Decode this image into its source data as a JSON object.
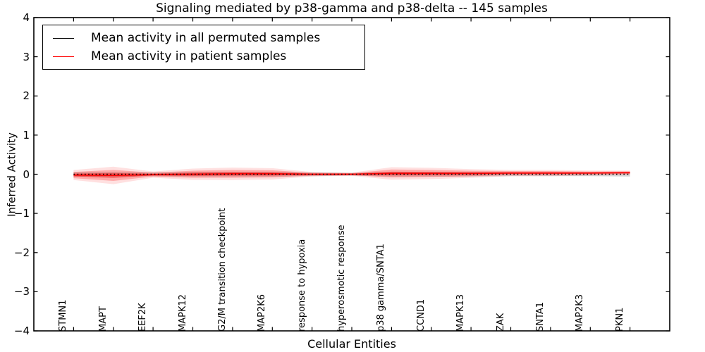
{
  "title": "Signaling mediated by p38-gamma and p38-delta -- 145 samples",
  "axes": {
    "ylabel": "Inferred Activity",
    "xlabel": "Cellular Entities"
  },
  "legend": {
    "items": [
      {
        "label": "Mean activity in all permuted samples",
        "color": "#000000"
      },
      {
        "label": "Mean activity in patient samples",
        "color": "#ff0000"
      }
    ]
  },
  "chart_data": {
    "type": "area",
    "title": "Signaling mediated by p38-gamma and p38-delta -- 145 samples",
    "xlabel": "Cellular Entities",
    "ylabel": "Inferred Activity",
    "ylim": [
      -4,
      4
    ],
    "xlim": [
      0,
      16
    ],
    "yticks": [
      -4,
      -3,
      -2,
      -1,
      0,
      1,
      2,
      3,
      4
    ],
    "grid": false,
    "legend_position": "upper left",
    "categories": [
      "STMN1",
      "MAPT",
      "EEF2K",
      "MAPK12",
      "G2/M transition checkpoint",
      "MAP2K6",
      "response to hypoxia",
      "hyperosmotic response",
      "p38 gamma/SNTA1",
      "CCND1",
      "MAPK13",
      "ZAK",
      "SNTA1",
      "MAP2K3",
      "PKN1"
    ],
    "series": [
      {
        "name": "Mean activity in all permuted samples",
        "color": "#000000",
        "style": "dotted",
        "values": [
          0,
          0,
          0,
          0,
          0,
          0,
          0,
          0,
          0,
          0,
          0,
          0,
          0,
          0,
          0
        ]
      },
      {
        "name": "Mean activity in patient samples",
        "color": "#ff0000",
        "style": "solid",
        "values": [
          -0.02,
          -0.03,
          -0.01,
          0.0,
          0.01,
          0.01,
          0.0,
          0.0,
          0.02,
          0.02,
          0.02,
          0.03,
          0.03,
          0.03,
          0.04
        ]
      }
    ],
    "patient_band_halfwidth": [
      0.08,
      0.14,
      0.05,
      0.09,
      0.1,
      0.09,
      0.035,
      0.025,
      0.1,
      0.09,
      0.07,
      0.05,
      0.05,
      0.04,
      0.035
    ],
    "permuted_band_halfwidth": [
      0.05,
      0.05,
      0.04,
      0.05,
      0.05,
      0.05,
      0.04,
      0.03,
      0.05,
      0.05,
      0.05,
      0.04,
      0.04,
      0.04,
      0.05
    ],
    "patient_color": "#ff0000",
    "permuted_color": "#000000",
    "band_fill_color": "#ff0000",
    "permuted_band_fill_color": "#888888"
  }
}
